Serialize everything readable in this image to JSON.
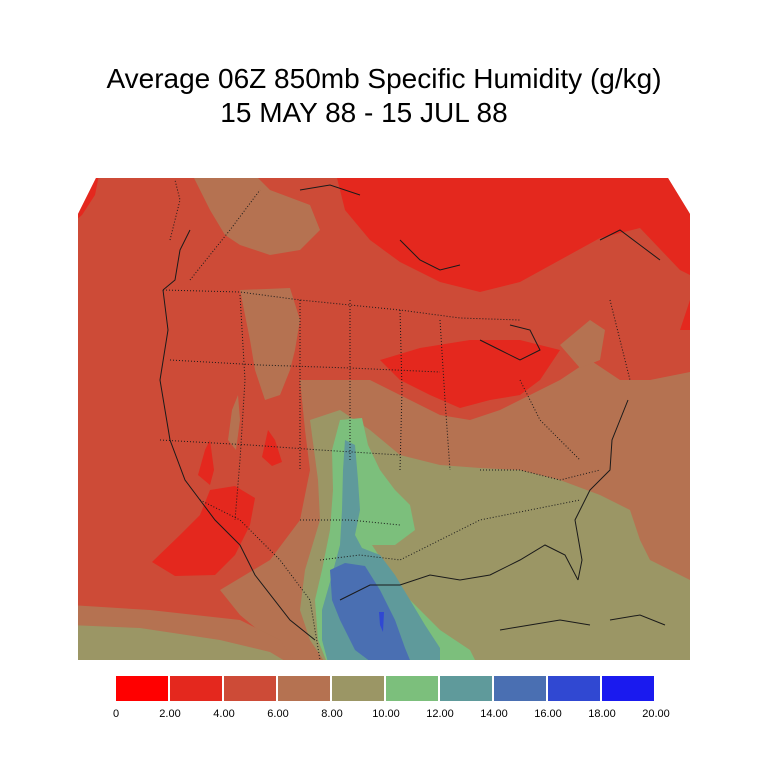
{
  "title": {
    "line1": "Average 06Z 850mb Specific Humidity (g/kg)",
    "line2": "15 MAY 88 - 15 JUL 88"
  },
  "colorbar": {
    "ticks": [
      "0",
      "2.00",
      "4.00",
      "6.00",
      "8.00",
      "10.00",
      "12.00",
      "14.00",
      "16.00",
      "18.00",
      "20.00"
    ],
    "colors": [
      "#ff0000",
      "#e4281e",
      "#cd4b37",
      "#b57251",
      "#9b9665",
      "#7cbf7c",
      "#5f9a9b",
      "#4a6fb2",
      "#3048d2",
      "#1a1aef"
    ]
  },
  "map": {
    "region": "North America",
    "background": "#cd4b37",
    "boundary_color": "#1a1a1a"
  }
}
